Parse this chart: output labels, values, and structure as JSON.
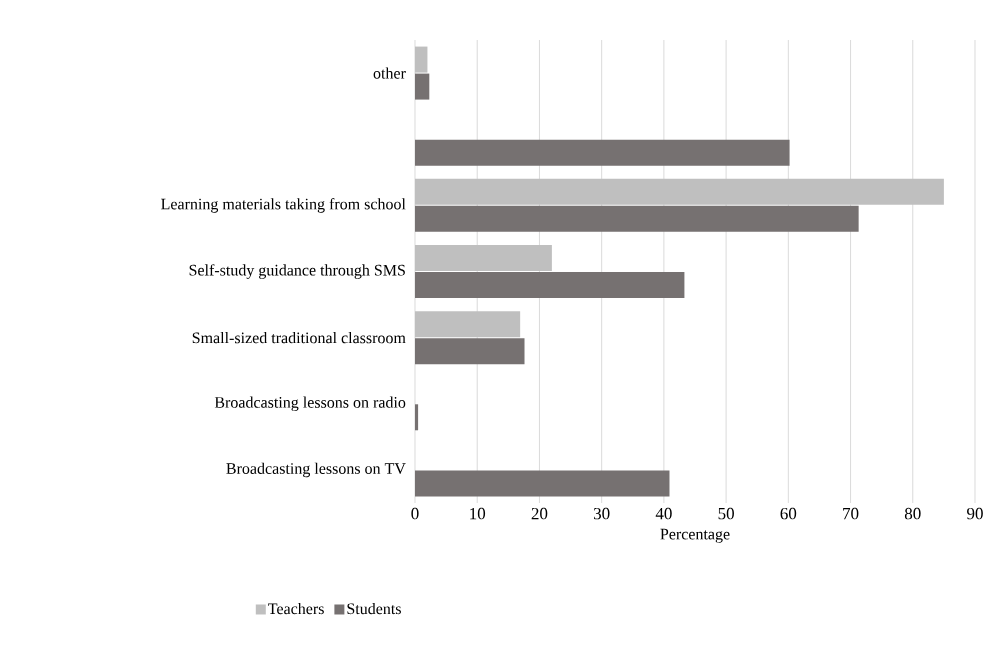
{
  "chart_data": {
    "type": "bar",
    "orientation": "horizontal",
    "xlabel": "Percentage",
    "categories": [
      "other",
      null,
      "Learning materials taking from school",
      "Self-study guidance through SMS",
      "Small-sized traditional classroom",
      "Broadcasting lessons on radio",
      "Broadcasting lessons on TV"
    ],
    "series": [
      {
        "name": "Teachers",
        "color": "#bfbfbf",
        "values": [
          2,
          null,
          85,
          22,
          16.9,
          null,
          null
        ]
      },
      {
        "name": "Students",
        "color": "#767171",
        "values": [
          2.3,
          60.2,
          71.3,
          43.3,
          17.6,
          0.5,
          40.9
        ]
      }
    ],
    "xlim": [
      0,
      90
    ],
    "xticks": [
      0,
      10,
      20,
      30,
      40,
      50,
      60,
      70,
      80,
      90
    ],
    "grid": "x",
    "legend": "bottom left"
  }
}
